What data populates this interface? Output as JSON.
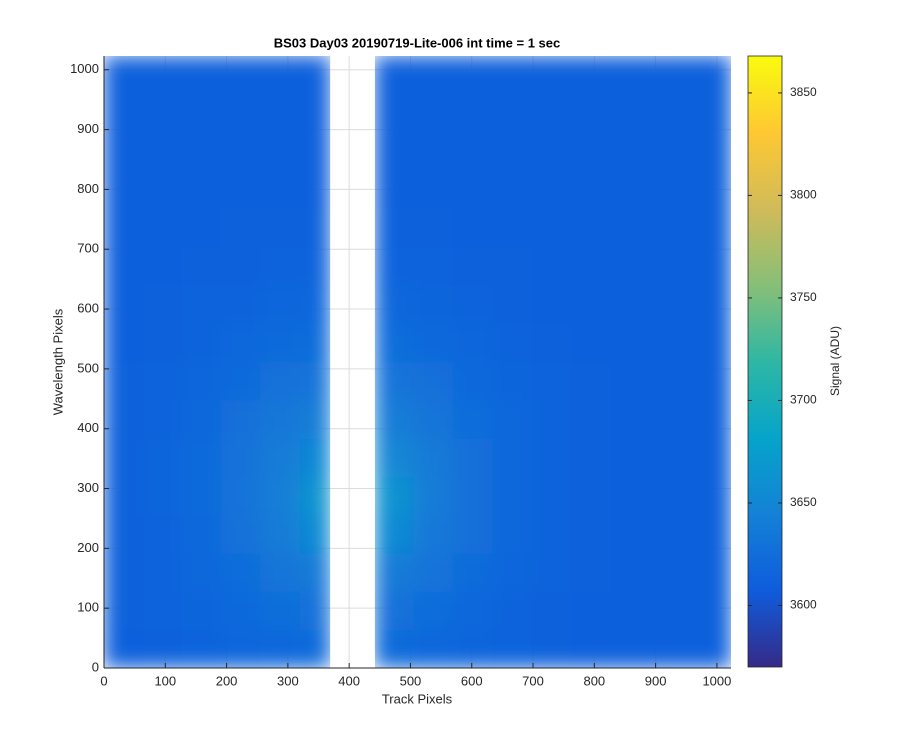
{
  "chart_data": {
    "type": "heatmap",
    "title": "BS03 Day03 20190719-Lite-006 int time = 1 sec",
    "xlabel": "Track Pixels",
    "ylabel": "Wavelength Pixels",
    "colorbar_label": "Signal (ADU)",
    "colormap": "parula",
    "xlim": [
      0,
      1023
    ],
    "ylim": [
      0,
      1023
    ],
    "xticks": [
      0,
      100,
      200,
      300,
      400,
      500,
      600,
      700,
      800,
      900,
      1000
    ],
    "yticks": [
      0,
      100,
      200,
      300,
      400,
      500,
      600,
      700,
      800,
      900,
      1000
    ],
    "clim": [
      3570,
      3868
    ],
    "cticks": [
      3600,
      3650,
      3700,
      3750,
      3800,
      3850
    ],
    "grid": true,
    "x_edges": [
      0,
      64,
      128,
      192,
      256,
      320,
      369,
      442,
      506,
      570,
      634,
      698,
      762,
      826,
      890,
      954,
      1023
    ],
    "y_edges": [
      0,
      64,
      128,
      192,
      256,
      320,
      384,
      448,
      512,
      576,
      640,
      704,
      768,
      832,
      896,
      960,
      1023
    ],
    "z": [
      [
        3612,
        3613,
        3614,
        3617,
        3619,
        3621,
        null,
        3621,
        3619,
        3616,
        3614,
        3613,
        3612,
        3612,
        3612,
        3612
      ],
      [
        3613,
        3614,
        3616,
        3620,
        3625,
        3629,
        null,
        3628,
        3624,
        3619,
        3615,
        3613,
        3612,
        3612,
        3612,
        3612
      ],
      [
        3613,
        3615,
        3618,
        3624,
        3632,
        3637,
        null,
        3637,
        3630,
        3623,
        3617,
        3614,
        3613,
        3612,
        3612,
        3612
      ],
      [
        3613,
        3615,
        3620,
        3628,
        3638,
        3655,
        null,
        3654,
        3635,
        3626,
        3619,
        3615,
        3613,
        3612,
        3612,
        3612
      ],
      [
        3613,
        3616,
        3621,
        3630,
        3641,
        3665,
        null,
        3664,
        3638,
        3627,
        3619,
        3615,
        3613,
        3612,
        3612,
        3612
      ],
      [
        3613,
        3616,
        3621,
        3629,
        3639,
        3652,
        null,
        3651,
        3637,
        3626,
        3619,
        3615,
        3613,
        3612,
        3612,
        3612
      ],
      [
        3613,
        3615,
        3619,
        3626,
        3634,
        3641,
        null,
        3640,
        3632,
        3624,
        3618,
        3614,
        3613,
        3612,
        3612,
        3612
      ],
      [
        3613,
        3614,
        3617,
        3622,
        3628,
        3632,
        null,
        3631,
        3626,
        3620,
        3616,
        3614,
        3613,
        3612,
        3612,
        3612
      ],
      [
        3612,
        3613,
        3615,
        3618,
        3621,
        3624,
        null,
        3624,
        3620,
        3617,
        3614,
        3613,
        3612,
        3612,
        3612,
        3612
      ],
      [
        3612,
        3613,
        3614,
        3615,
        3617,
        3618,
        null,
        3618,
        3616,
        3615,
        3613,
        3612,
        3612,
        3612,
        3612,
        3612
      ],
      [
        3612,
        3612,
        3613,
        3613,
        3614,
        3615,
        null,
        3615,
        3614,
        3613,
        3613,
        3612,
        3612,
        3612,
        3612,
        3612
      ],
      [
        3612,
        3612,
        3612,
        3613,
        3613,
        3613,
        null,
        3613,
        3613,
        3612,
        3612,
        3612,
        3612,
        3612,
        3612,
        3612
      ],
      [
        3612,
        3612,
        3612,
        3612,
        3612,
        3612,
        null,
        3612,
        3612,
        3612,
        3612,
        3612,
        3612,
        3612,
        3612,
        3612
      ],
      [
        3612,
        3612,
        3612,
        3612,
        3612,
        3612,
        null,
        3612,
        3612,
        3612,
        3612,
        3612,
        3612,
        3612,
        3612,
        3612
      ],
      [
        3612,
        3612,
        3612,
        3612,
        3612,
        3612,
        null,
        3612,
        3612,
        3612,
        3612,
        3612,
        3612,
        3612,
        3612,
        3612
      ],
      [
        3612,
        3612,
        3612,
        3612,
        3612,
        3612,
        null,
        3612,
        3612,
        3612,
        3612,
        3612,
        3612,
        3612,
        3612,
        3612
      ]
    ]
  }
}
